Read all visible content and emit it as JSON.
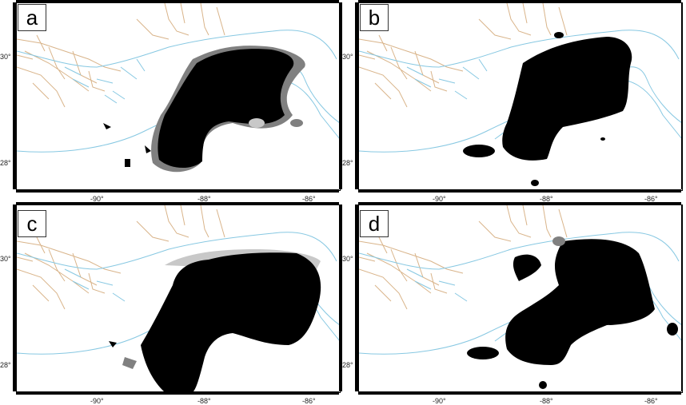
{
  "panels": [
    {
      "id": "a",
      "label": "a"
    },
    {
      "id": "b",
      "label": "b"
    },
    {
      "id": "c",
      "label": "c"
    },
    {
      "id": "d",
      "label": "d"
    }
  ],
  "axes": {
    "lon_ticks": [
      "-90°",
      "-88°",
      "-86°"
    ],
    "lat_ticks": [
      "30°",
      "28°"
    ]
  },
  "colors": {
    "water_features": "#87c8e2",
    "roads": "#d9b48a",
    "slick": "#000000",
    "slick_uncertain": "#808080",
    "slick_faint": "#c8c8c8"
  }
}
